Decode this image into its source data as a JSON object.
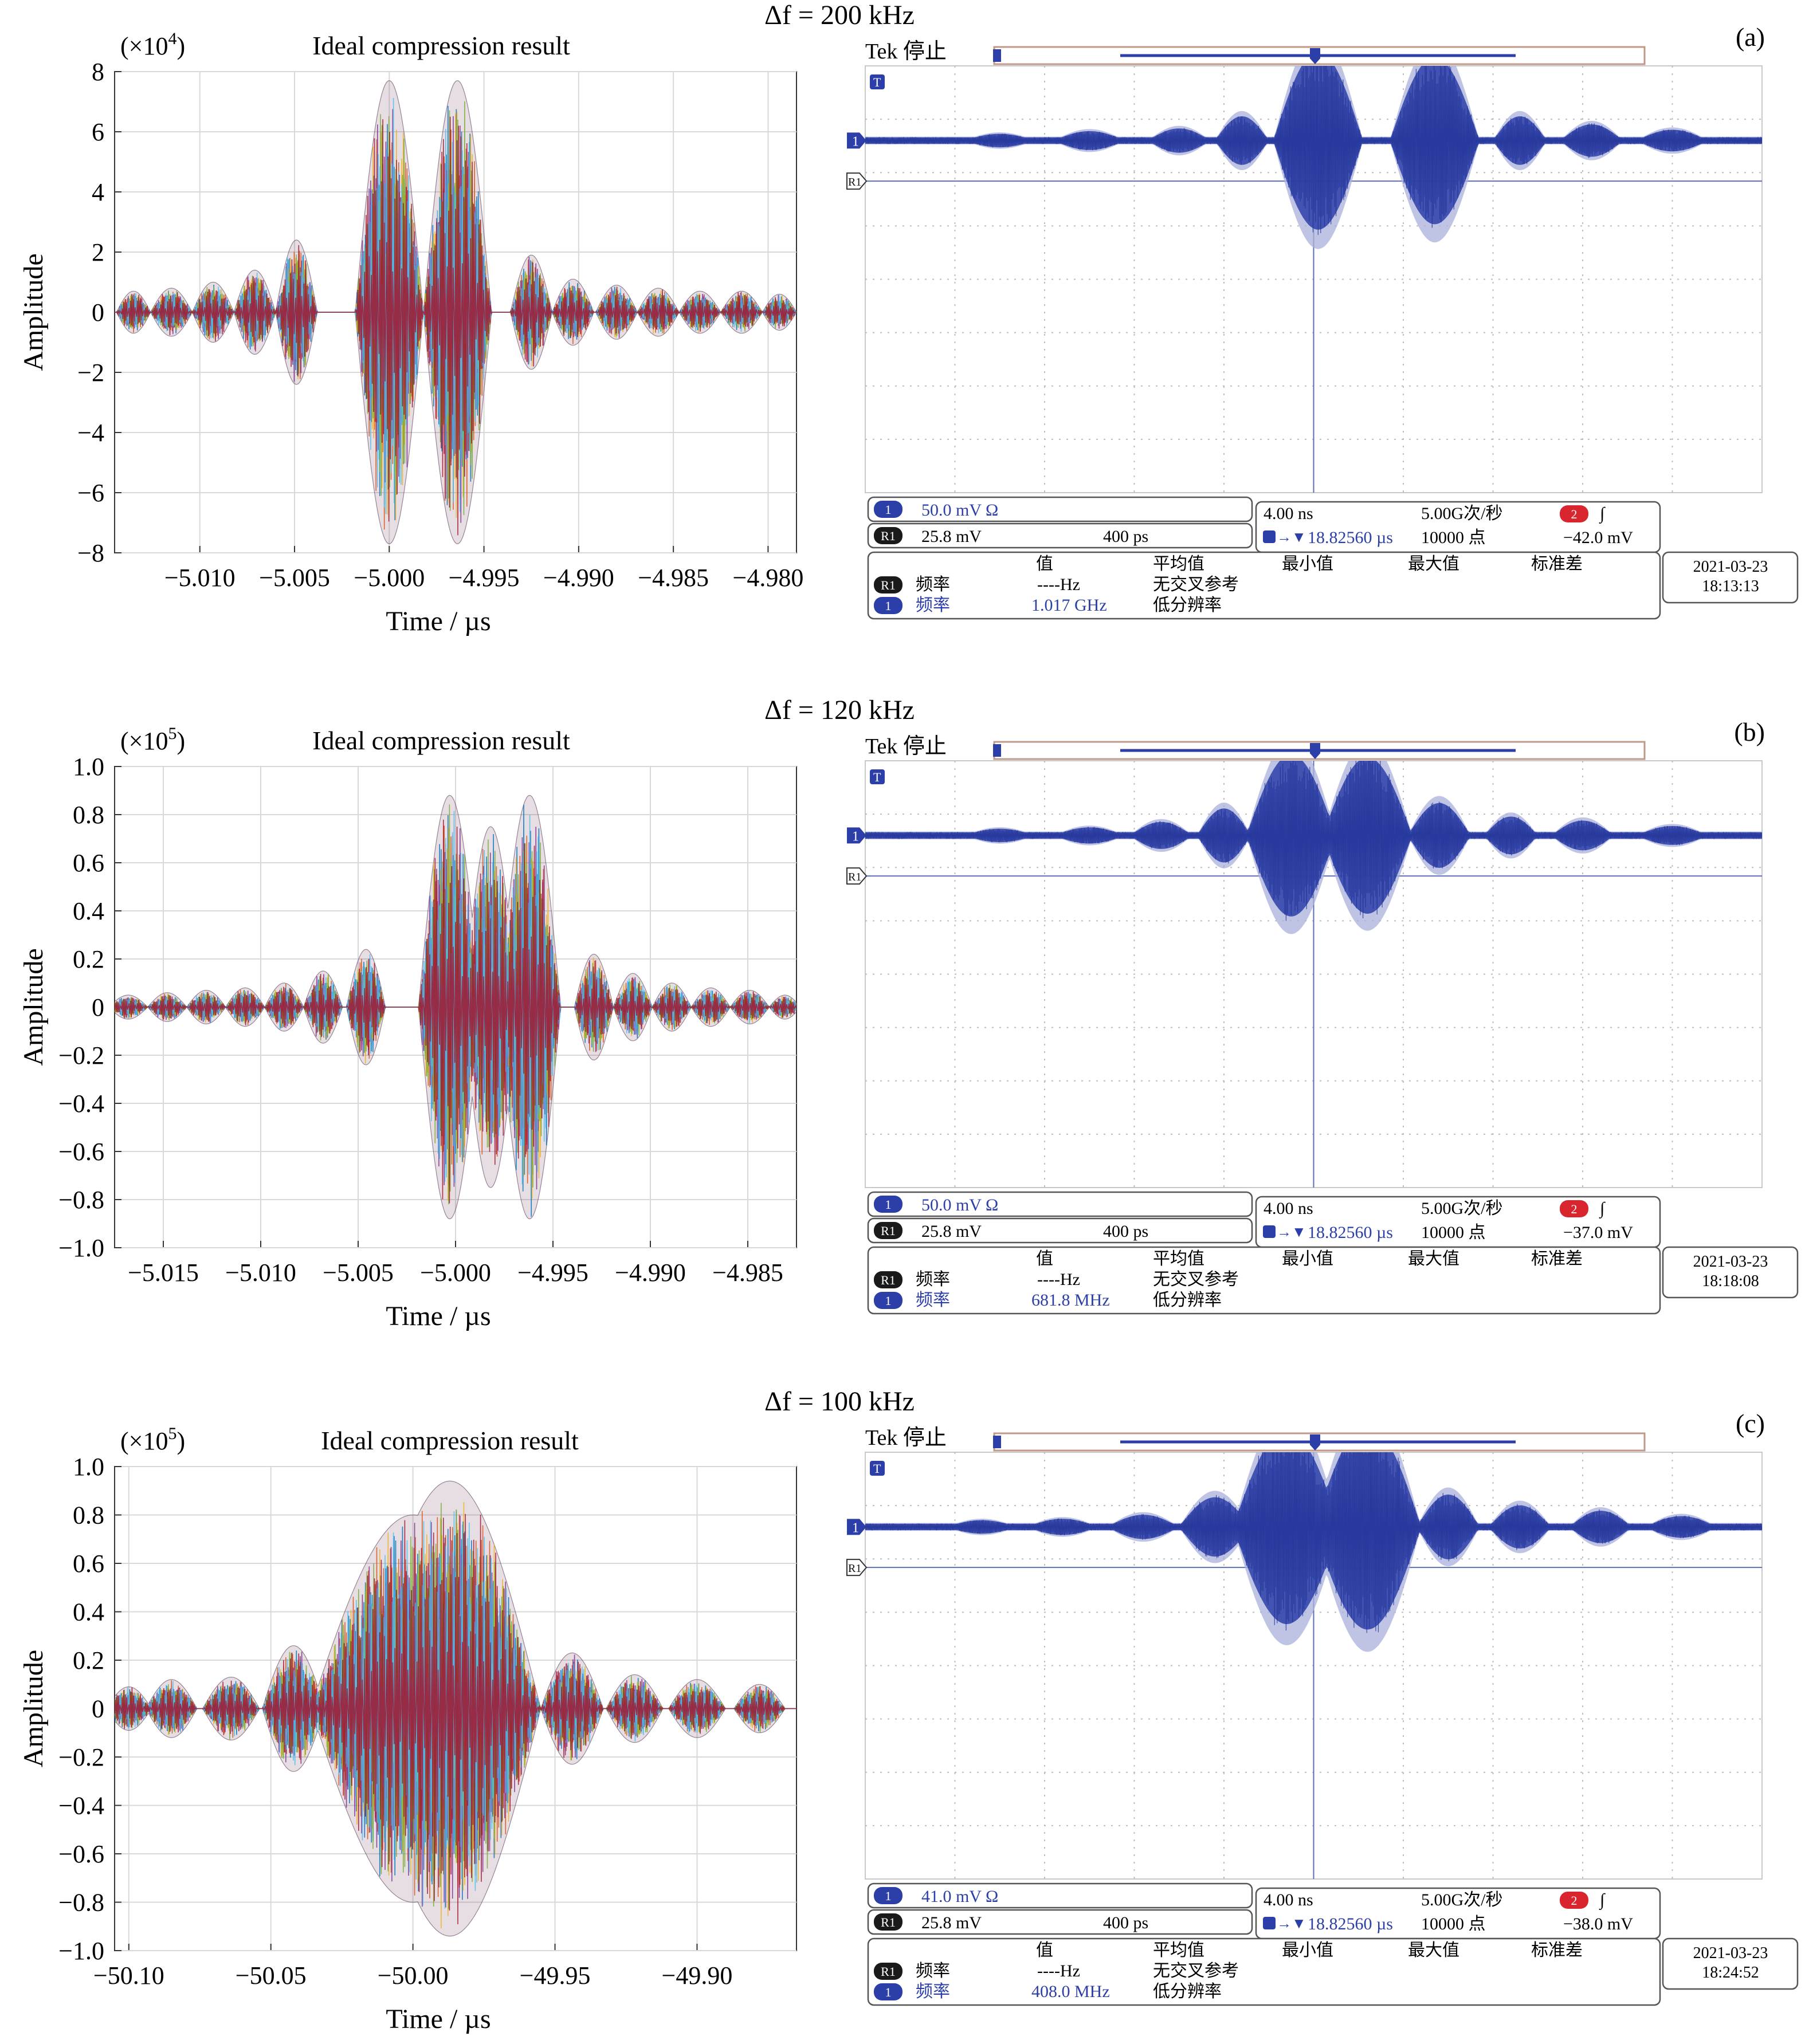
{
  "panels": [
    {
      "id": "a",
      "delta_f_label": "Δf = 200 kHz",
      "letter": "(a)",
      "left_chart": {
        "type": "line",
        "title": "Ideal compression result",
        "multiplier": "(×10",
        "multiplier_exp": "4",
        "multiplier_close": ")",
        "xlabel": "Time / µs",
        "ylabel": "Amplitude",
        "xlim": [
          -5.0145,
          -4.9785
        ],
        "ylim": [
          -8,
          8
        ],
        "xticks": [
          -5.01,
          -5.005,
          -5.0,
          -4.995,
          -4.99,
          -4.985,
          -4.98
        ],
        "xtick_labels": [
          "−5.010",
          "−5.005",
          "−5.000",
          "−4.995",
          "−4.990",
          "−4.985",
          "−4.980"
        ],
        "yticks": [
          8,
          6,
          4,
          2,
          0,
          -2,
          -4,
          -6,
          -8
        ],
        "ytick_labels": [
          "8",
          "6",
          "4",
          "2",
          "0",
          "−2",
          "−4",
          "−6",
          "−8"
        ],
        "lobes": [
          {
            "center": -5.0135,
            "half_width": 0.0009,
            "peak": 0.7
          },
          {
            "center": -5.0115,
            "half_width": 0.0011,
            "peak": 0.8
          },
          {
            "center": -5.0093,
            "half_width": 0.0011,
            "peak": 1.0
          },
          {
            "center": -5.0071,
            "half_width": 0.0011,
            "peak": 1.4
          },
          {
            "center": -5.0049,
            "half_width": 0.0011,
            "peak": 2.4
          },
          {
            "center": -5.0,
            "half_width": 0.0018,
            "peak": 7.7
          },
          {
            "center": -4.9964,
            "half_width": 0.0018,
            "peak": 7.7
          },
          {
            "center": -4.9925,
            "half_width": 0.0011,
            "peak": 1.9
          },
          {
            "center": -4.9903,
            "half_width": 0.0011,
            "peak": 1.1
          },
          {
            "center": -4.988,
            "half_width": 0.0011,
            "peak": 0.9
          },
          {
            "center": -4.9858,
            "half_width": 0.0011,
            "peak": 0.8
          },
          {
            "center": -4.9836,
            "half_width": 0.0011,
            "peak": 0.7
          },
          {
            "center": -4.9814,
            "half_width": 0.0011,
            "peak": 0.7
          },
          {
            "center": -4.9794,
            "half_width": 0.0009,
            "peak": 0.6
          }
        ]
      },
      "scope": {
        "tek_label": "Tek 停止",
        "ch1_scale": "50.0 mV Ω",
        "r1_scale": "25.8 mV",
        "r1_time": "400 ps",
        "timebase": "4.00 ns",
        "trigger_pos": "18.82560 µs",
        "sample_rate": "5.00G次/秒",
        "record_length": "10000 点",
        "ch2_badge": "2",
        "trigger_level": "−42.0 mV",
        "meas_headers": [
          "值",
          "平均值",
          "最小值",
          "最大值",
          "标准差"
        ],
        "meas_r1_label": "频率",
        "meas_r1_value": "----Hz",
        "meas_r1_note": "无交叉参考",
        "meas_ch1_label": "频率",
        "meas_ch1_value": "1.017 GHz",
        "meas_ch1_note": "低分辨率",
        "date": "2021-03-23",
        "time": "18:13:13",
        "lobes": [
          {
            "pos": 0.15,
            "hw": 0.04,
            "amp": 0.25
          },
          {
            "pos": 0.25,
            "hw": 0.04,
            "amp": 0.35
          },
          {
            "pos": 0.35,
            "hw": 0.035,
            "amp": 0.45
          },
          {
            "pos": 0.42,
            "hw": 0.03,
            "amp": 0.9
          },
          {
            "pos": 0.505,
            "hw": 0.05,
            "amp": 3.3
          },
          {
            "pos": 0.635,
            "hw": 0.05,
            "amp": 3.1
          },
          {
            "pos": 0.73,
            "hw": 0.03,
            "amp": 0.9
          },
          {
            "pos": 0.81,
            "hw": 0.035,
            "amp": 0.6
          },
          {
            "pos": 0.9,
            "hw": 0.04,
            "amp": 0.4
          }
        ]
      }
    },
    {
      "id": "b",
      "delta_f_label": "Δf = 120 kHz",
      "letter": "(b)",
      "left_chart": {
        "type": "line",
        "title": "Ideal compression result",
        "multiplier": "(×10",
        "multiplier_exp": "5",
        "multiplier_close": ")",
        "xlabel": "Time / µs",
        "ylabel": "Amplitude",
        "xlim": [
          -5.0175,
          -4.9825
        ],
        "ylim": [
          -1.0,
          1.0
        ],
        "xticks": [
          -5.015,
          -5.01,
          -5.005,
          -5.0,
          -4.995,
          -4.99,
          -4.985
        ],
        "xtick_labels": [
          "−5.015",
          "−5.010",
          "−5.005",
          "−5.000",
          "−4.995",
          "−4.990",
          "−4.985"
        ],
        "yticks": [
          1.0,
          0.8,
          0.6,
          0.4,
          0.2,
          0,
          -0.2,
          -0.4,
          -0.6,
          -0.8,
          -1.0
        ],
        "ytick_labels": [
          "1.0",
          "0.8",
          "0.6",
          "0.4",
          "0.2",
          "0",
          "−0.2",
          "−0.4",
          "−0.6",
          "−0.8",
          "−1.0"
        ],
        "lobes": [
          {
            "center": -5.0168,
            "half_width": 0.001,
            "peak": 0.05
          },
          {
            "center": -5.0148,
            "half_width": 0.001,
            "peak": 0.06
          },
          {
            "center": -5.0128,
            "half_width": 0.001,
            "peak": 0.07
          },
          {
            "center": -5.0108,
            "half_width": 0.001,
            "peak": 0.08
          },
          {
            "center": -5.0088,
            "half_width": 0.001,
            "peak": 0.1
          },
          {
            "center": -5.0068,
            "half_width": 0.001,
            "peak": 0.15
          },
          {
            "center": -5.0046,
            "half_width": 0.001,
            "peak": 0.24
          },
          {
            "center": -5.0003,
            "half_width": 0.0016,
            "peak": 0.88
          },
          {
            "center": -4.9982,
            "half_width": 0.0014,
            "peak": 0.75
          },
          {
            "center": -4.9962,
            "half_width": 0.0016,
            "peak": 0.88
          },
          {
            "center": -4.9929,
            "half_width": 0.001,
            "peak": 0.22
          },
          {
            "center": -4.9909,
            "half_width": 0.001,
            "peak": 0.14
          },
          {
            "center": -4.9889,
            "half_width": 0.001,
            "peak": 0.1
          },
          {
            "center": -4.9869,
            "half_width": 0.001,
            "peak": 0.08
          },
          {
            "center": -4.9849,
            "half_width": 0.001,
            "peak": 0.07
          },
          {
            "center": -4.9831,
            "half_width": 0.0008,
            "peak": 0.05
          }
        ]
      },
      "scope": {
        "tek_label": "Tek 停止",
        "ch1_scale": "50.0 mV Ω",
        "r1_scale": "25.8 mV",
        "r1_time": "400 ps",
        "timebase": "4.00 ns",
        "trigger_pos": "18.82560 µs",
        "sample_rate": "5.00G次/秒",
        "record_length": "10000 点",
        "ch2_badge": "2",
        "trigger_level": "−37.0 mV",
        "meas_headers": [
          "值",
          "平均值",
          "最小值",
          "最大值",
          "标准差"
        ],
        "meas_r1_label": "频率",
        "meas_r1_value": "----Hz",
        "meas_r1_note": "无交叉参考",
        "meas_ch1_label": "频率",
        "meas_ch1_value": "681.8 MHz",
        "meas_ch1_note": "低分辨率",
        "date": "2021-03-23",
        "time": "18:18:08",
        "lobes": [
          {
            "pos": 0.15,
            "hw": 0.04,
            "amp": 0.25
          },
          {
            "pos": 0.25,
            "hw": 0.04,
            "amp": 0.3
          },
          {
            "pos": 0.33,
            "hw": 0.035,
            "amp": 0.5
          },
          {
            "pos": 0.4,
            "hw": 0.03,
            "amp": 1.0
          },
          {
            "pos": 0.475,
            "hw": 0.05,
            "amp": 3.0
          },
          {
            "pos": 0.56,
            "hw": 0.05,
            "amp": 2.9
          },
          {
            "pos": 0.64,
            "hw": 0.035,
            "amp": 1.2
          },
          {
            "pos": 0.72,
            "hw": 0.03,
            "amp": 0.7
          },
          {
            "pos": 0.8,
            "hw": 0.035,
            "amp": 0.55
          },
          {
            "pos": 0.9,
            "hw": 0.04,
            "amp": 0.35
          }
        ]
      }
    },
    {
      "id": "c",
      "delta_f_label": "Δf = 100 kHz",
      "letter": "(c)",
      "left_chart": {
        "type": "line",
        "title": "Ideal compression result",
        "multiplier": "(×10",
        "multiplier_exp": "5",
        "multiplier_close": ")",
        "xlabel": "Time / µs",
        "ylabel": "Amplitude",
        "xlim": [
          -50.105,
          -49.865
        ],
        "ylim": [
          -1.0,
          1.0
        ],
        "xticks": [
          -50.1,
          -50.05,
          -50.0,
          -49.95,
          -49.9
        ],
        "xtick_labels": [
          "−50.10",
          "−50.05",
          "−50.00",
          "−49.95",
          "−49.90"
        ],
        "yticks": [
          1.0,
          0.8,
          0.6,
          0.4,
          0.2,
          0,
          -0.2,
          -0.4,
          -0.6,
          -0.8,
          -1.0
        ],
        "ytick_labels": [
          "1.0",
          "0.8",
          "0.6",
          "0.4",
          "0.2",
          "0",
          "−0.2",
          "−0.4",
          "−0.6",
          "−0.8",
          "−1.0"
        ],
        "lobes": [
          {
            "center": -50.1,
            "half_width": 0.008,
            "peak": 0.09
          },
          {
            "center": -50.085,
            "half_width": 0.009,
            "peak": 0.12
          },
          {
            "center": -50.064,
            "half_width": 0.01,
            "peak": 0.13
          },
          {
            "center": -50.042,
            "half_width": 0.011,
            "peak": 0.26
          },
          {
            "center": -50.0,
            "half_width": 0.036,
            "peak": 0.8
          },
          {
            "center": -49.987,
            "half_width": 0.032,
            "peak": 0.94
          },
          {
            "center": -49.944,
            "half_width": 0.011,
            "peak": 0.23
          },
          {
            "center": -49.922,
            "half_width": 0.01,
            "peak": 0.14
          },
          {
            "center": -49.9,
            "half_width": 0.01,
            "peak": 0.12
          },
          {
            "center": -49.878,
            "half_width": 0.009,
            "peak": 0.1
          }
        ]
      },
      "scope": {
        "tek_label": "Tek 停止",
        "ch1_scale": "41.0 mV Ω",
        "r1_scale": "25.8 mV",
        "r1_time": "400 ps",
        "timebase": "4.00 ns",
        "trigger_pos": "18.82560 µs",
        "sample_rate": "5.00G次/秒",
        "record_length": "10000 点",
        "ch2_badge": "2",
        "trigger_level": "−38.0 mV",
        "meas_headers": [
          "值",
          "平均值",
          "最小值",
          "最大值",
          "标准差"
        ],
        "meas_r1_label": "频率",
        "meas_r1_value": "----Hz",
        "meas_r1_note": "无交叉参考",
        "meas_ch1_label": "频率",
        "meas_ch1_value": "408.0 MHz",
        "meas_ch1_note": "低分辨率",
        "date": "2021-03-23",
        "time": "18:24:52",
        "lobes": [
          {
            "pos": 0.13,
            "hw": 0.04,
            "amp": 0.25
          },
          {
            "pos": 0.22,
            "hw": 0.04,
            "amp": 0.3
          },
          {
            "pos": 0.31,
            "hw": 0.04,
            "amp": 0.45
          },
          {
            "pos": 0.39,
            "hw": 0.04,
            "amp": 1.1
          },
          {
            "pos": 0.47,
            "hw": 0.06,
            "amp": 3.6
          },
          {
            "pos": 0.56,
            "hw": 0.06,
            "amp": 3.8
          },
          {
            "pos": 0.65,
            "hw": 0.035,
            "amp": 1.2
          },
          {
            "pos": 0.73,
            "hw": 0.035,
            "amp": 0.8
          },
          {
            "pos": 0.82,
            "hw": 0.035,
            "amp": 0.6
          },
          {
            "pos": 0.91,
            "hw": 0.04,
            "amp": 0.4
          }
        ]
      }
    }
  ],
  "chart_data": [
    {
      "type": "line",
      "title": "Ideal compression result",
      "xlabel": "Time / µs",
      "ylabel": "Amplitude",
      "xlim": [
        -5.0145,
        -4.9785
      ],
      "ylim": [
        -8,
        8
      ],
      "series": [
        {
          "x": [
            -5.0135,
            -5.0115,
            -5.0093,
            -5.0071,
            -5.0049,
            -5.0,
            -4.9964,
            -4.9925,
            -4.9903,
            -4.988,
            -4.9858,
            -4.9836,
            -4.9814,
            -4.9794
          ],
          "values": [
            0.7,
            0.8,
            1.0,
            1.4,
            2.4,
            7.7,
            7.7,
            1.9,
            1.1,
            0.9,
            0.8,
            0.7,
            0.7,
            0.6
          ]
        }
      ]
    },
    {
      "type": "line",
      "title": "Ideal compression result",
      "xlabel": "Time / µs",
      "ylabel": "Amplitude",
      "xlim": [
        -5.0175,
        -4.9825
      ],
      "ylim": [
        -1.0,
        1.0
      ],
      "series": [
        {
          "x": [
            -5.0168,
            -5.0148,
            -5.0128,
            -5.0108,
            -5.0088,
            -5.0068,
            -5.0046,
            -5.0003,
            -4.9982,
            -4.9962,
            -4.9929,
            -4.9909,
            -4.9889,
            -4.9869,
            -4.9849,
            -4.9831
          ],
          "values": [
            0.05,
            0.06,
            0.07,
            0.08,
            0.1,
            0.15,
            0.24,
            0.88,
            0.75,
            0.88,
            0.22,
            0.14,
            0.1,
            0.08,
            0.07,
            0.05
          ]
        }
      ]
    },
    {
      "type": "line",
      "title": "Ideal compression result",
      "xlabel": "Time / µs",
      "ylabel": "Amplitude",
      "xlim": [
        -50.105,
        -49.865
      ],
      "ylim": [
        -1.0,
        1.0
      ],
      "series": [
        {
          "x": [
            -50.1,
            -50.085,
            -50.064,
            -50.042,
            -50.0,
            -49.987,
            -49.944,
            -49.922,
            -49.9,
            -49.878
          ],
          "values": [
            0.09,
            0.12,
            0.13,
            0.26,
            0.8,
            0.94,
            0.23,
            0.14,
            0.12,
            0.1
          ]
        }
      ]
    }
  ],
  "colors": {
    "trace_palette": [
      "#0072bd",
      "#d95319",
      "#edb120",
      "#7e2f8e",
      "#77ac30",
      "#4dbeee",
      "#a2142f"
    ],
    "scope_trace": "#2c3fa8",
    "scope_trace_light": "#a9b0dc",
    "scope_border": "#c09a88",
    "ch1_badge": "#2c3fa8",
    "ch2_badge": "#d9262e"
  }
}
